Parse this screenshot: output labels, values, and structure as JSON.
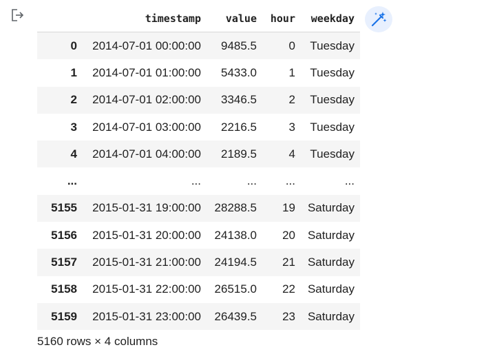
{
  "table": {
    "columns": [
      "timestamp",
      "value",
      "hour",
      "weekday"
    ],
    "rows": [
      {
        "index": "0",
        "timestamp": "2014-07-01 00:00:00",
        "value": "9485.5",
        "hour": "0",
        "weekday": "Tuesday"
      },
      {
        "index": "1",
        "timestamp": "2014-07-01 01:00:00",
        "value": "5433.0",
        "hour": "1",
        "weekday": "Tuesday"
      },
      {
        "index": "2",
        "timestamp": "2014-07-01 02:00:00",
        "value": "3346.5",
        "hour": "2",
        "weekday": "Tuesday"
      },
      {
        "index": "3",
        "timestamp": "2014-07-01 03:00:00",
        "value": "2216.5",
        "hour": "3",
        "weekday": "Tuesday"
      },
      {
        "index": "4",
        "timestamp": "2014-07-01 04:00:00",
        "value": "2189.5",
        "hour": "4",
        "weekday": "Tuesday"
      },
      {
        "index": "...",
        "timestamp": "...",
        "value": "...",
        "hour": "...",
        "weekday": "..."
      },
      {
        "index": "5155",
        "timestamp": "2015-01-31 19:00:00",
        "value": "28288.5",
        "hour": "19",
        "weekday": "Saturday"
      },
      {
        "index": "5156",
        "timestamp": "2015-01-31 20:00:00",
        "value": "24138.0",
        "hour": "20",
        "weekday": "Saturday"
      },
      {
        "index": "5157",
        "timestamp": "2015-01-31 21:00:00",
        "value": "24194.5",
        "hour": "21",
        "weekday": "Saturday"
      },
      {
        "index": "5158",
        "timestamp": "2015-01-31 22:00:00",
        "value": "26515.0",
        "hour": "22",
        "weekday": "Saturday"
      },
      {
        "index": "5159",
        "timestamp": "2015-01-31 23:00:00",
        "value": "26439.5",
        "hour": "23",
        "weekday": "Saturday"
      }
    ]
  },
  "footer": "5160 rows × 4 columns",
  "icons": {
    "output": "output-redirect-icon",
    "magic": "magic-wand-icon"
  },
  "colors": {
    "accent": "#1a73e8",
    "button_bg": "#e8f0fe",
    "row_shade": "#f5f5f5"
  }
}
